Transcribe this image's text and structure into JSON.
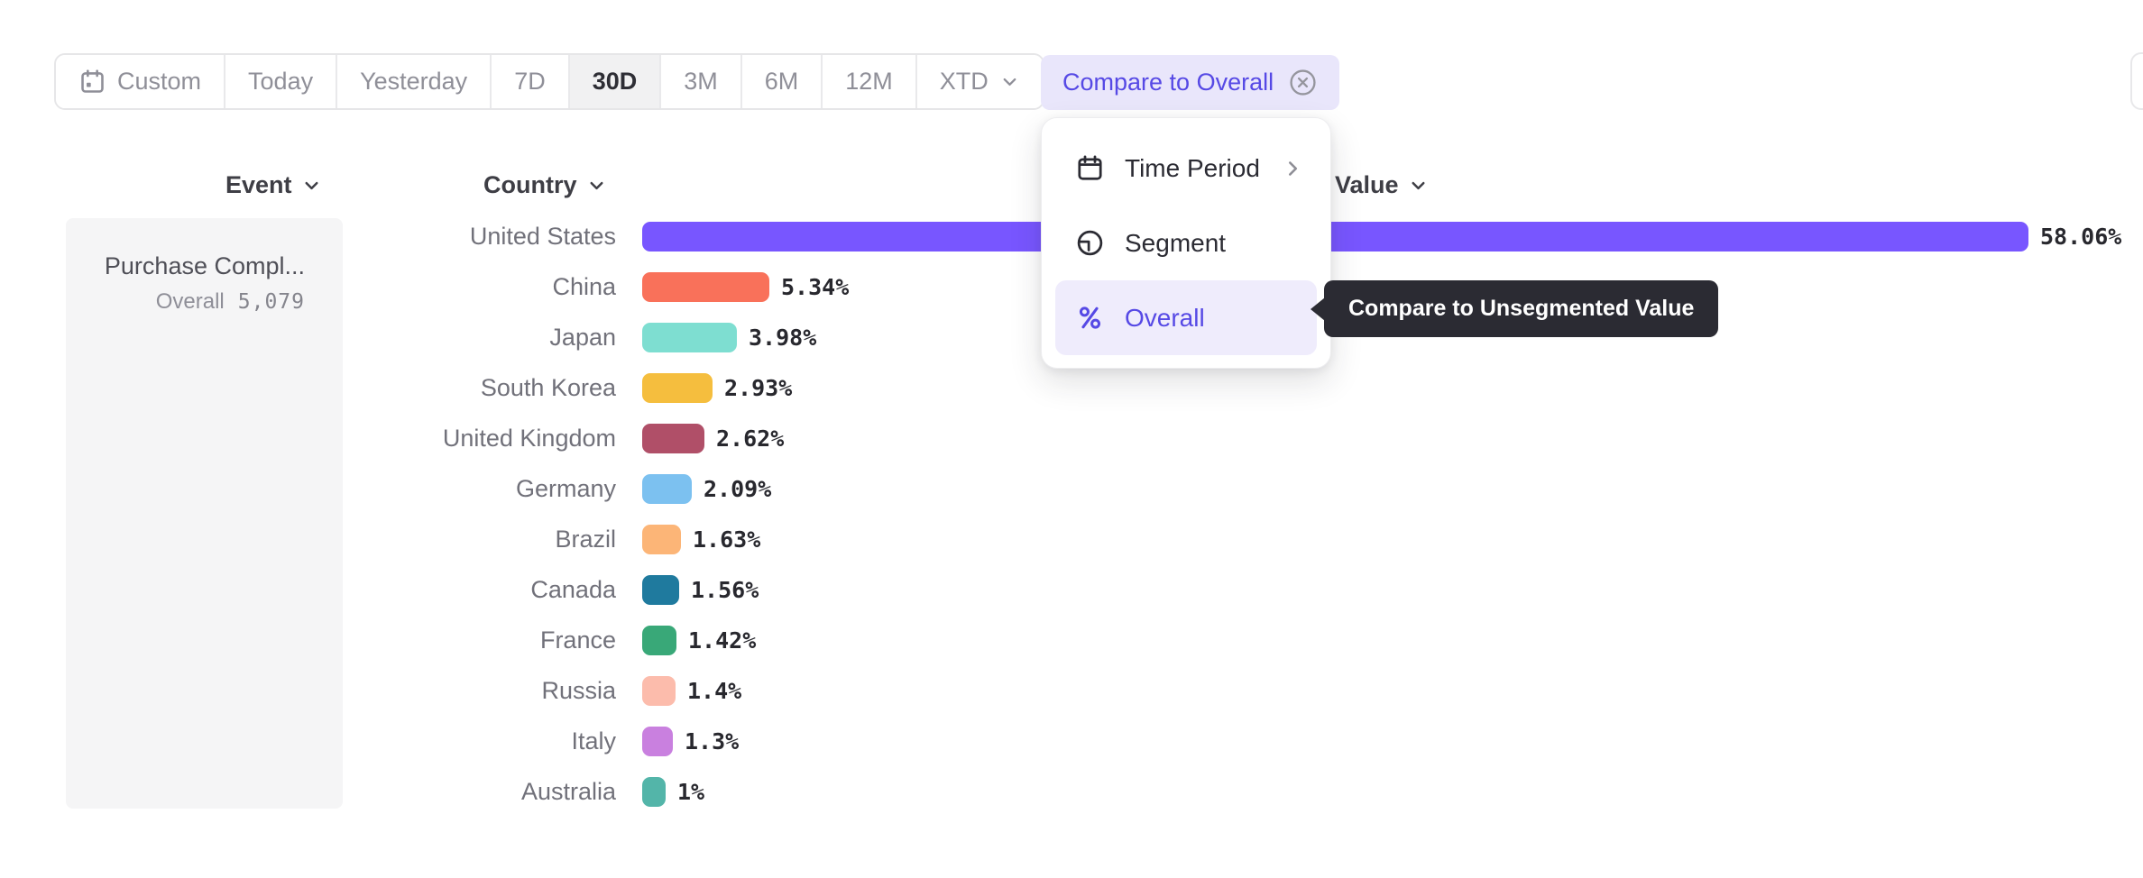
{
  "toolbar": {
    "date_ranges": [
      {
        "label": "Custom",
        "icon": "calendar-icon"
      },
      {
        "label": "Today"
      },
      {
        "label": "Yesterday"
      },
      {
        "label": "7D"
      },
      {
        "label": "30D",
        "selected": true
      },
      {
        "label": "3M"
      },
      {
        "label": "6M"
      },
      {
        "label": "12M"
      },
      {
        "label": "XTD",
        "icon_right": "chevron-down-icon"
      }
    ],
    "compare_button": {
      "label": "Compare to Overall",
      "icon_right": "circle-x-icon"
    }
  },
  "dropdown": {
    "items": [
      {
        "label": "Time Period",
        "icon": "calendar-icon",
        "trailing_icon": "chevron-right-icon",
        "selected": false
      },
      {
        "label": "Segment",
        "icon": "segment-icon",
        "selected": false
      },
      {
        "label": "Overall",
        "icon": "percent-icon",
        "selected": true
      }
    ]
  },
  "tooltip": {
    "text": "Compare to Unsegmented Value"
  },
  "columns": {
    "event": {
      "label": "Event",
      "icon": "chevron-down-icon"
    },
    "country": {
      "label": "Country",
      "icon": "chevron-down-icon"
    },
    "value": {
      "label": "Value",
      "icon": "chevron-down-icon"
    }
  },
  "event_card": {
    "name": "Purchase Compl...",
    "overall_label": "Overall",
    "overall_value": "5,079"
  },
  "chart_data": {
    "type": "bar",
    "orientation": "horizontal",
    "categories": [
      "United States",
      "China",
      "Japan",
      "South Korea",
      "United Kingdom",
      "Germany",
      "Brazil",
      "Canada",
      "France",
      "Russia",
      "Italy",
      "Australia"
    ],
    "values": [
      58.06,
      5.34,
      3.98,
      2.93,
      2.62,
      2.09,
      1.63,
      1.56,
      1.42,
      1.4,
      1.3,
      1
    ],
    "value_labels": [
      "58.06%",
      "5.34%",
      "3.98%",
      "2.93%",
      "2.62%",
      "2.09%",
      "1.63%",
      "1.56%",
      "1.42%",
      "1.4%",
      "1.3%",
      "1%"
    ],
    "colors": [
      "#7856ff",
      "#f9715a",
      "#7eded1",
      "#f5be3e",
      "#b04f68",
      "#7cc1f0",
      "#fcb577",
      "#1f7a9e",
      "#39a878",
      "#fcbcac",
      "#c980df",
      "#53b5a9"
    ],
    "xlabel": "Value",
    "ylabel": "Country",
    "grid": false,
    "legend": false
  },
  "ui_colors": {
    "accent_purple": "#5649e5",
    "compare_button_bg": "#e9e6fb",
    "selected_menu_item_bg": "#efecfc",
    "tooltip_bg": "#2b2b33",
    "selected_range_bg": "#f1f1f2",
    "card_bg": "#f5f5f6"
  }
}
